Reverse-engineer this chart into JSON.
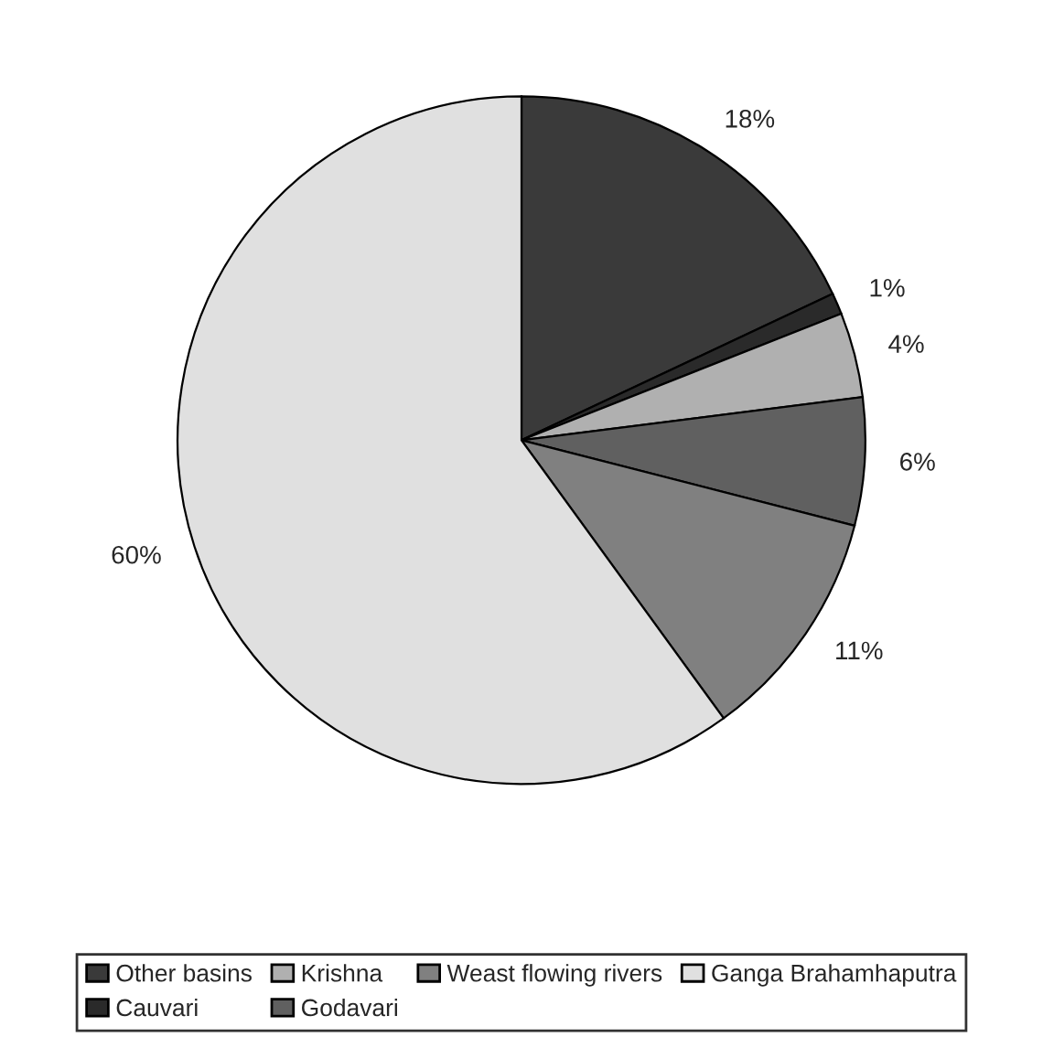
{
  "chart_data": {
    "type": "pie",
    "categories": [
      "Other basins",
      "Cauvari",
      "Krishna",
      "Godavari",
      "Weast flowing rivers",
      "Ganga Brahamhaputra"
    ],
    "values": [
      18,
      1,
      4,
      6,
      11,
      60
    ],
    "colors": [
      "#3a3a3a",
      "#2a2a2a",
      "#b0b0b0",
      "#606060",
      "#808080",
      "#e0e0e0"
    ],
    "value_labels": [
      "18%",
      "1%",
      "4%",
      "6%",
      "11%",
      "60%"
    ],
    "legend": "bottom"
  }
}
